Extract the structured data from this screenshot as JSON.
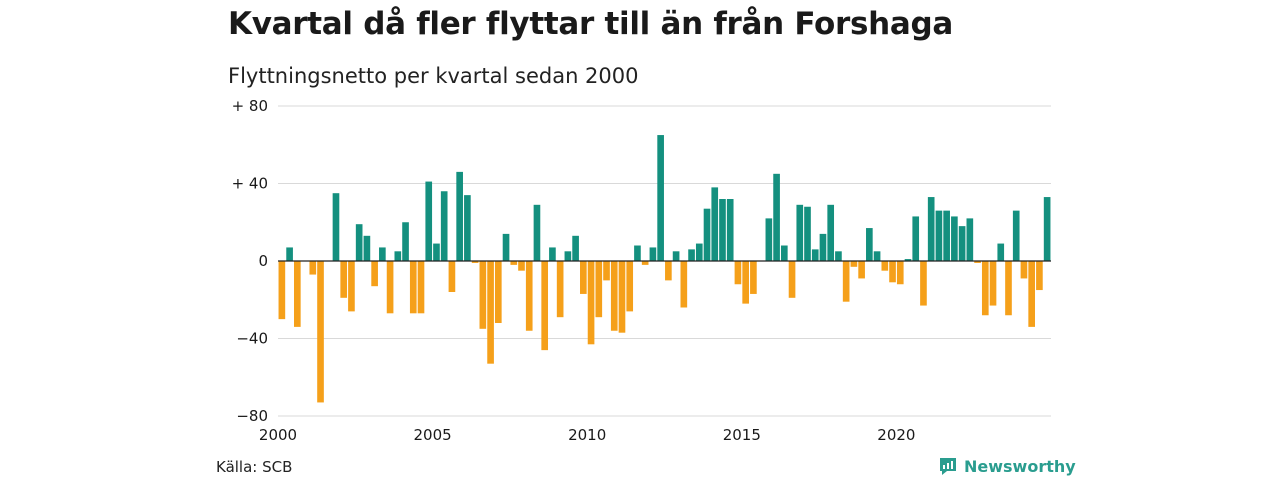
{
  "title": "Kvartal då fler flyttar till än från Forshaga",
  "subtitle": "Flyttningsnetto per kvartal sedan 2000",
  "source": "Källa: SCB",
  "brand": {
    "name": "Newsworthy",
    "icon": "newsworthy-logo-icon"
  },
  "colors": {
    "positive": "#14907f",
    "negative": "#f5a01a",
    "grid": "#d9d9d9",
    "zero": "#222222"
  },
  "chart_data": {
    "type": "bar",
    "title": "Kvartal då fler flyttar till än från Forshaga",
    "subtitle": "Flyttningsnetto per kvartal sedan 2000",
    "xlabel": "",
    "ylabel": "",
    "ylim": [
      -80,
      80
    ],
    "yticks": [
      80,
      40,
      0,
      -40,
      -80
    ],
    "ytick_labels": [
      "+ 80",
      "+ 40",
      "0",
      "−40",
      "−80"
    ],
    "xticks": [
      "2000",
      "2005",
      "2010",
      "2015",
      "2020"
    ],
    "grid": true,
    "legend": "none",
    "period": "2000 Q1 – 2024 Q4",
    "values": [
      -30,
      7,
      -34,
      0,
      -7,
      -73,
      0,
      35,
      -19,
      -26,
      19,
      13,
      -13,
      7,
      -27,
      5,
      20,
      -27,
      -27,
      41,
      9,
      36,
      -16,
      46,
      34,
      -1,
      -35,
      -53,
      -32,
      14,
      -2,
      -5,
      -36,
      29,
      -46,
      7,
      -29,
      5,
      13,
      -17,
      -43,
      -29,
      -10,
      -36,
      -37,
      -26,
      8,
      -2,
      7,
      65,
      -10,
      5,
      -24,
      6,
      9,
      27,
      38,
      32,
      32,
      -12,
      -22,
      -17,
      0,
      22,
      45,
      8,
      -19,
      29,
      28,
      6,
      14,
      29,
      5,
      -21,
      -3,
      -9,
      17,
      5,
      -5,
      -11,
      -12,
      1,
      23,
      -23,
      33,
      26,
      26,
      23,
      18,
      22,
      -1,
      -28,
      -23,
      9,
      -28,
      26,
      -9,
      -34,
      -15,
      33
    ]
  }
}
